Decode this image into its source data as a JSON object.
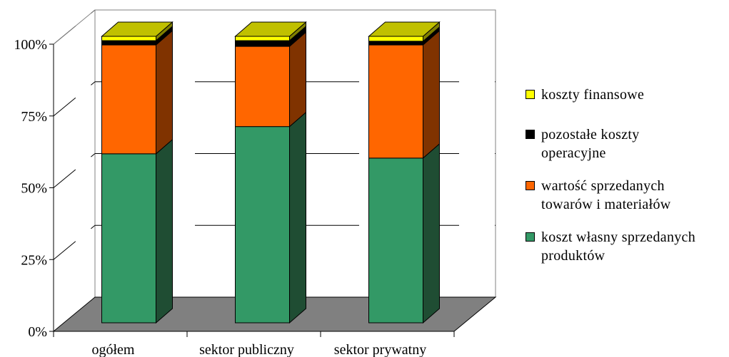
{
  "chart_data": {
    "type": "bar",
    "stacked": true,
    "three_d": true,
    "percent_stacked": true,
    "categories": [
      "ogółem",
      "sektor publiczny",
      "sektor prywatny"
    ],
    "series": [
      {
        "name": "koszt własny sprzedanych produktów",
        "color": "#339966",
        "side_color": "#1f4d33",
        "values": [
          59,
          68.5,
          57.5
        ]
      },
      {
        "name": "wartość sprzedanych towarów i materiałów",
        "color": "#ff6600",
        "side_color": "#803300",
        "values": [
          38,
          28,
          39.5
        ]
      },
      {
        "name": "pozostałe koszty operacyjne",
        "color": "#000000",
        "side_color": "#000000",
        "values": [
          1.5,
          2,
          1.3
        ]
      },
      {
        "name": "koszty finansowe",
        "color": "#ffff00",
        "side_color": "#808000",
        "values": [
          1.5,
          1.5,
          1.7
        ]
      }
    ],
    "y_ticks": [
      "0%",
      "25%",
      "50%",
      "75%",
      "100%"
    ],
    "ylim": [
      0,
      100
    ],
    "grid": true,
    "legend_position": "right",
    "floor_color": "#808080",
    "top_color": "#c0c000"
  },
  "legend": {
    "items": [
      {
        "lines": [
          "koszty finansowe"
        ],
        "color": "#ffff00"
      },
      {
        "lines": [
          "pozostałe koszty",
          "operacyjne"
        ],
        "color": "#000000"
      },
      {
        "lines": [
          "wartość sprzedanych",
          "towarów i materiałów"
        ],
        "color": "#ff6600"
      },
      {
        "lines": [
          "koszt własny sprzedanych",
          "produktów"
        ],
        "color": "#339966"
      }
    ]
  }
}
